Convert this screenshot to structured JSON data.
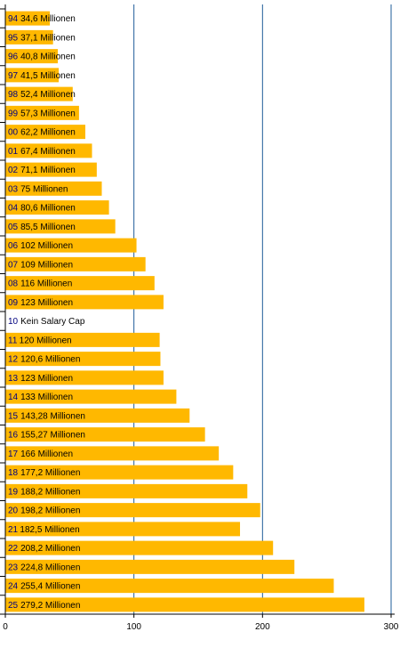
{
  "chart_data": {
    "type": "bar",
    "orientation": "horizontal",
    "categories": [
      "94",
      "95",
      "96",
      "97",
      "98",
      "99",
      "00",
      "01",
      "02",
      "03",
      "04",
      "05",
      "06",
      "07",
      "08",
      "09",
      "10",
      "11",
      "12",
      "13",
      "14",
      "15",
      "16",
      "17",
      "18",
      "19",
      "20",
      "21",
      "22",
      "23",
      "24",
      "25"
    ],
    "values": [
      34.6,
      37.1,
      40.8,
      41.5,
      52.4,
      57.3,
      62.2,
      67.4,
      71.1,
      75,
      80.6,
      85.5,
      102,
      109,
      116,
      123,
      null,
      120,
      120.6,
      123,
      133,
      143.28,
      155.27,
      166,
      177.2,
      188.2,
      198.2,
      182.5,
      208.2,
      224.8,
      255.4,
      279.2
    ],
    "data_labels": [
      "34,6 Millionen",
      "37,1 Millionen",
      "40,8 Millionen",
      "41,5 Millionen",
      "52,4 Millionen",
      "57,3 Millionen",
      "62,2 Millionen",
      "67,4 Millionen",
      "71,1 Millionen",
      "75 Millionen",
      "80,6 Millionen",
      "85,5 Millionen",
      "102 Millionen",
      "109 Millionen",
      "116 Millionen",
      "123 Millionen",
      "Kein Salary Cap",
      "120 Millionen",
      "120,6 Millionen",
      "123 Millionen",
      "133 Millionen",
      "143,28 Millionen",
      "155,27 Millionen",
      "166 Millionen",
      "177,2 Millionen",
      "188,2 Millionen",
      "198,2 Millionen",
      "182,5 Millionen",
      "208,2 Millionen",
      "224,8 Millionen",
      "255,4 Millionen",
      "279,2 Millionen"
    ],
    "x_ticks": [
      "0",
      "100",
      "200",
      "300"
    ],
    "xlim": [
      0,
      300
    ],
    "title": "",
    "xlabel": "",
    "ylabel": "",
    "grid": "vertical",
    "legend": "none",
    "colors": {
      "bar": "#FFB800",
      "grid": "#1F5C99",
      "axis": "#000000",
      "category_text": "#00007F",
      "label_text": "#000000"
    }
  }
}
